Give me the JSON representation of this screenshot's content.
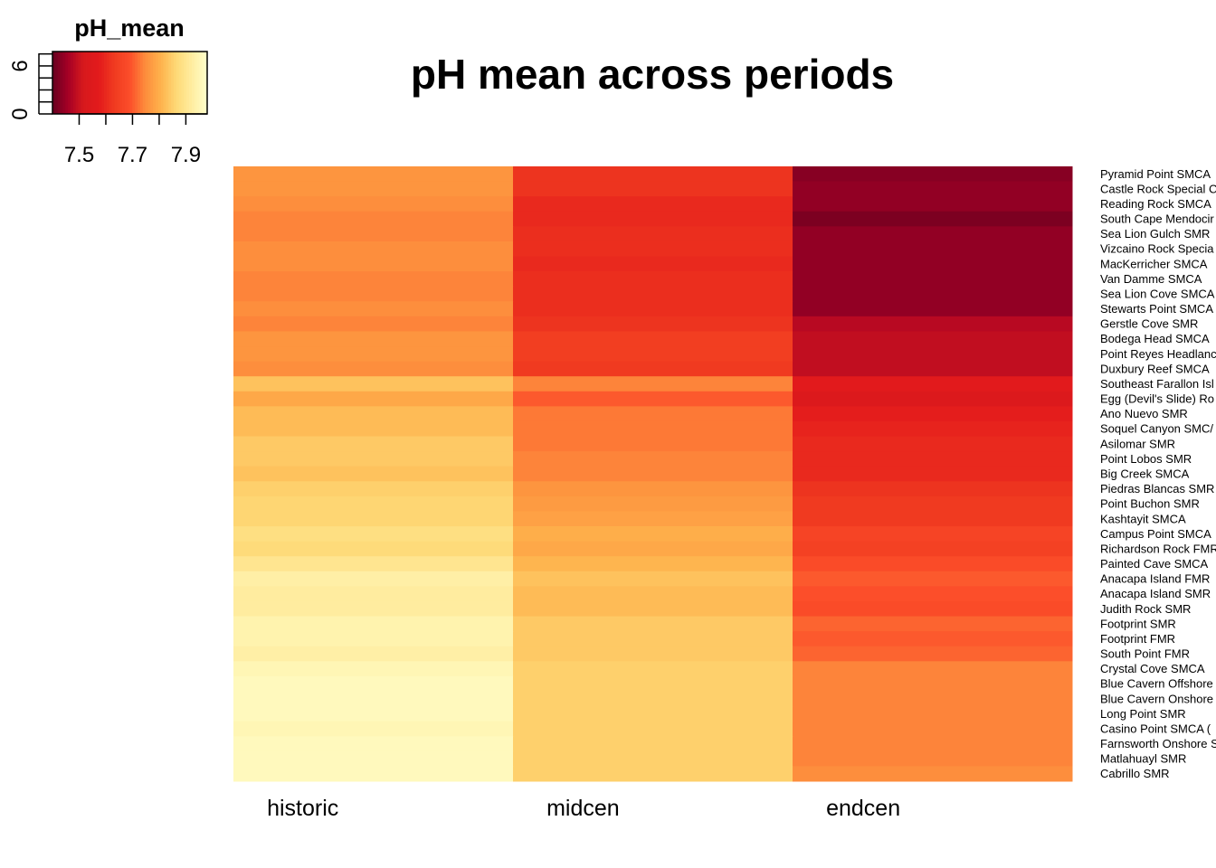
{
  "chart_data": {
    "type": "heatmap",
    "title": "pH mean across periods",
    "columns": [
      "historic",
      "midcen",
      "endcen"
    ],
    "rows": [
      "Pyramid Point SMCA",
      "Castle Rock Special C",
      "Reading Rock SMCA",
      "South Cape Mendocir",
      "Sea Lion Gulch SMR",
      "Vizcaino Rock Specia",
      "MacKerricher SMCA",
      "Van Damme SMCA",
      "Sea Lion Cove SMCA",
      "Stewarts Point SMCA",
      "Gerstle Cove SMR",
      "Bodega Head SMCA",
      "Point Reyes Headlanc",
      "Duxbury Reef SMCA",
      "Southeast Farallon Isl",
      "Egg (Devil's Slide) Ro",
      "Ano Nuevo SMR",
      "Soquel Canyon SMC/",
      "Asilomar SMR",
      "Point Lobos SMR",
      "Big Creek SMCA",
      "Piedras Blancas SMR",
      "Point Buchon SMR",
      "Kashtayit SMCA",
      "Campus Point SMCA",
      "Richardson Rock FMR",
      "Painted Cave SMCA",
      "Anacapa Island FMR",
      "Anacapa Island SMR",
      "Judith Rock SMR",
      "Footprint SMR",
      "Footprint FMR",
      "South Point FMR",
      "Crystal Cove SMCA",
      "Blue Cavern Offshore",
      "Blue Cavern Onshore",
      "Long Point SMR",
      "Casino Point SMCA (",
      "Farnsworth Onshore S",
      "Matlahuayl SMR",
      "Cabrillo SMR"
    ],
    "values": [
      [
        7.76,
        7.62,
        7.43
      ],
      [
        7.76,
        7.62,
        7.44
      ],
      [
        7.75,
        7.6,
        7.44
      ],
      [
        7.74,
        7.6,
        7.42
      ],
      [
        7.74,
        7.61,
        7.44
      ],
      [
        7.75,
        7.61,
        7.44
      ],
      [
        7.75,
        7.6,
        7.44
      ],
      [
        7.74,
        7.61,
        7.44
      ],
      [
        7.74,
        7.61,
        7.44
      ],
      [
        7.75,
        7.61,
        7.44
      ],
      [
        7.74,
        7.62,
        7.48
      ],
      [
        7.76,
        7.64,
        7.49
      ],
      [
        7.76,
        7.64,
        7.49
      ],
      [
        7.75,
        7.63,
        7.49
      ],
      [
        7.83,
        7.74,
        7.57
      ],
      [
        7.79,
        7.7,
        7.54
      ],
      [
        7.82,
        7.73,
        7.58
      ],
      [
        7.82,
        7.73,
        7.59
      ],
      [
        7.84,
        7.73,
        7.6
      ],
      [
        7.84,
        7.74,
        7.6
      ],
      [
        7.83,
        7.74,
        7.6
      ],
      [
        7.85,
        7.76,
        7.62
      ],
      [
        7.86,
        7.77,
        7.63
      ],
      [
        7.86,
        7.78,
        7.63
      ],
      [
        7.88,
        7.8,
        7.66
      ],
      [
        7.87,
        7.79,
        7.65
      ],
      [
        7.9,
        7.81,
        7.68
      ],
      [
        7.93,
        7.83,
        7.7
      ],
      [
        7.92,
        7.82,
        7.69
      ],
      [
        7.92,
        7.82,
        7.68
      ],
      [
        7.94,
        7.84,
        7.71
      ],
      [
        7.94,
        7.84,
        7.7
      ],
      [
        7.93,
        7.84,
        7.71
      ],
      [
        7.95,
        7.85,
        7.74
      ],
      [
        7.96,
        7.85,
        7.74
      ],
      [
        7.96,
        7.85,
        7.74
      ],
      [
        7.96,
        7.85,
        7.74
      ],
      [
        7.95,
        7.85,
        7.74
      ],
      [
        7.96,
        7.85,
        7.74
      ],
      [
        7.96,
        7.85,
        7.74
      ],
      [
        7.96,
        7.85,
        7.75
      ]
    ],
    "color_palette": [
      "#67001f",
      "#a50026",
      "#d7191c",
      "#e31a1c",
      "#f03b20",
      "#fc4e2a",
      "#fd8d3c",
      "#feb24c",
      "#fed976",
      "#ffeda0",
      "#ffffcc"
    ],
    "value_range": [
      7.4,
      7.98
    ],
    "color_key": {
      "title": "pH_mean",
      "ticks": [
        "7.5",
        "7.7",
        "7.9"
      ],
      "tick_values": [
        7.5,
        7.7,
        7.9
      ],
      "count_ticks": [
        "0",
        "6"
      ],
      "count_tick_values": [
        0,
        6
      ]
    }
  }
}
